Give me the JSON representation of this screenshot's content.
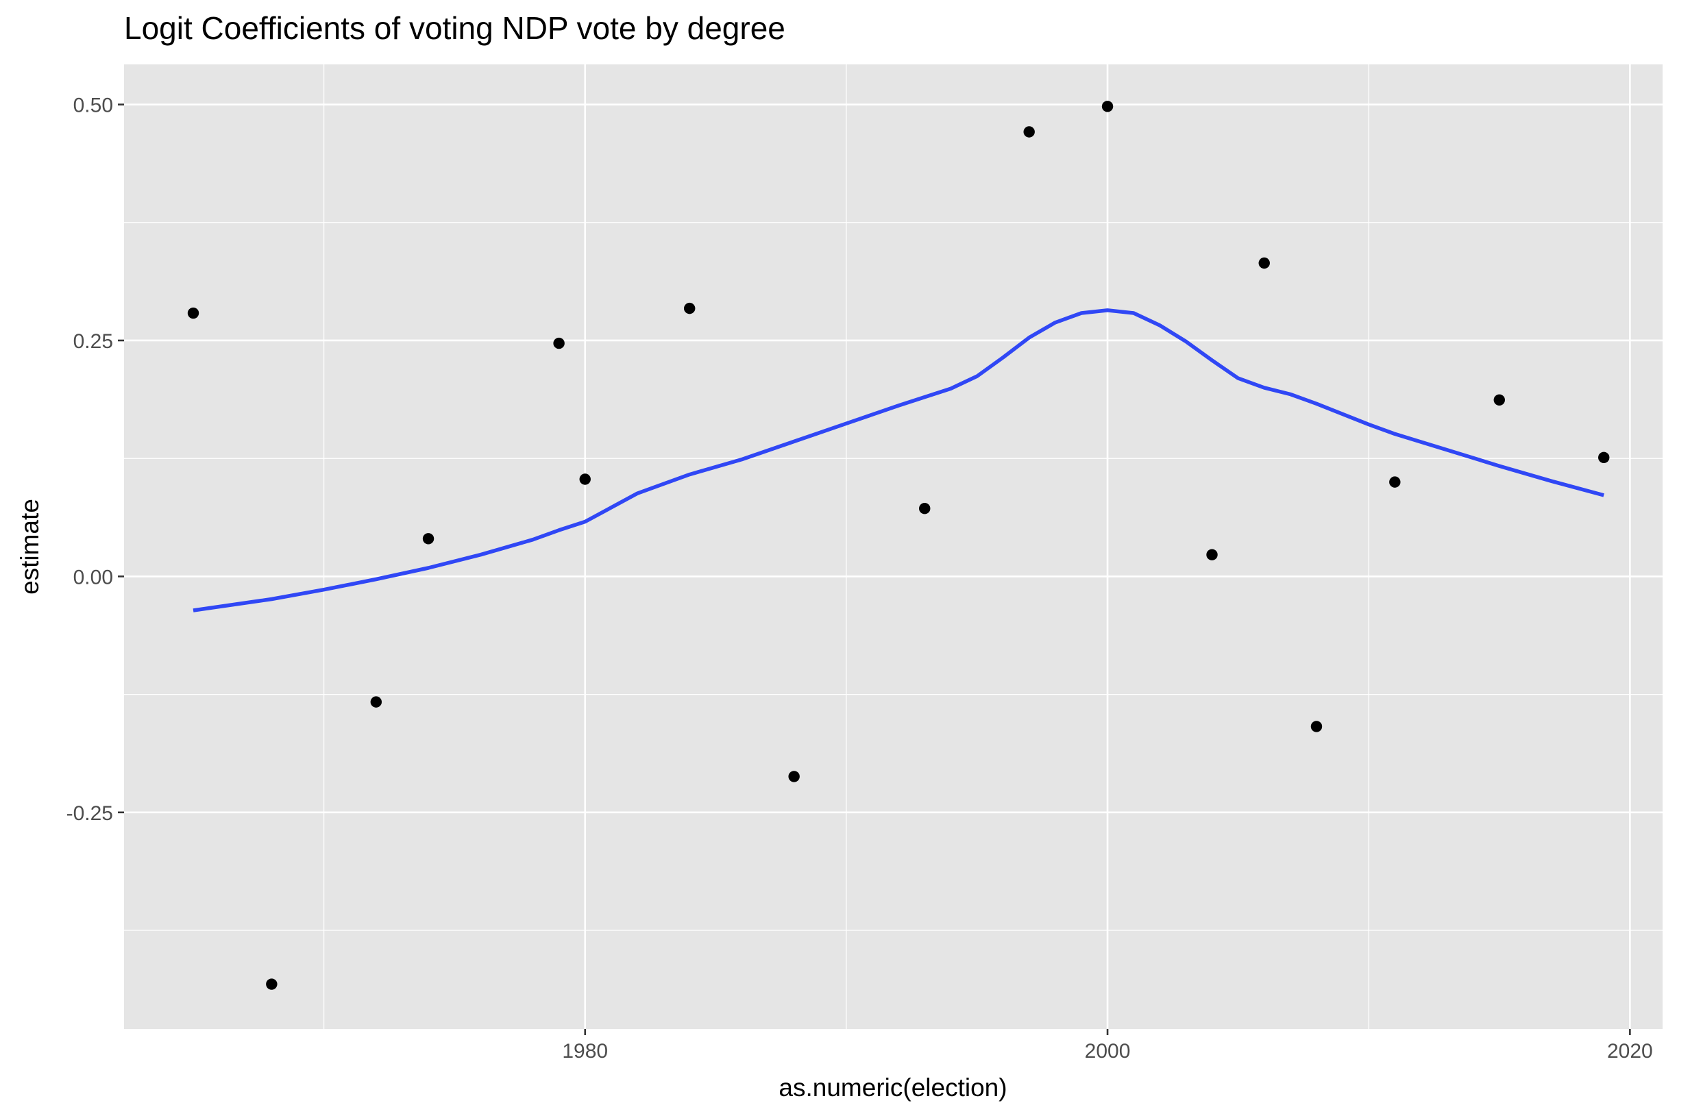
{
  "title": "Logit Coefficients of voting NDP vote by degree",
  "chart_data": {
    "type": "scatter",
    "title": "Logit Coefficients of voting NDP vote by degree",
    "xlabel": "as.numeric(election)",
    "ylabel": "estimate",
    "xlim": [
      1962.35,
      2021.25
    ],
    "ylim": [
      -0.4795,
      0.5425
    ],
    "x_ticks": [
      1980,
      2000,
      2020
    ],
    "x_tick_labels": [
      "1980",
      "2000",
      "2020"
    ],
    "x_minor_ticks": [
      1970,
      1990,
      2010
    ],
    "y_ticks": [
      -0.25,
      0.0,
      0.25,
      0.5
    ],
    "y_tick_labels": [
      "-0.25",
      "0.00",
      "0.25",
      "0.50"
    ],
    "y_minor_ticks": [
      -0.375,
      -0.125,
      0.125,
      0.375
    ],
    "grid": true,
    "legend": "none",
    "colors": {
      "panel": "#e5e5e5",
      "grid": "#ffffff",
      "points": "#000000",
      "smooth": "#3047f5"
    },
    "series": [
      {
        "type": "points",
        "x": [
          1965,
          1968,
          1972,
          1974,
          1979,
          1980,
          1984,
          1988,
          1993,
          1997,
          2000,
          2004,
          2006,
          2008,
          2011,
          2015,
          2019
        ],
        "y": [
          0.279,
          -0.432,
          -0.133,
          0.04,
          0.247,
          0.103,
          0.284,
          -0.212,
          0.072,
          0.471,
          0.498,
          0.023,
          0.332,
          -0.159,
          0.1,
          0.187,
          0.126
        ]
      },
      {
        "type": "smooth",
        "x": [
          1965,
          1968,
          1970,
          1972,
          1974,
          1976,
          1978,
          1979,
          1980,
          1982,
          1984,
          1986,
          1988,
          1990,
          1992,
          1993,
          1994,
          1995,
          1996,
          1997,
          1998,
          1999,
          2000,
          2001,
          2002,
          2003,
          2004,
          2005,
          2006,
          2007,
          2008,
          2009,
          2010,
          2011,
          2013,
          2015,
          2017,
          2019
        ],
        "y": [
          -0.036,
          -0.024,
          -0.014,
          -0.003,
          0.009,
          0.023,
          0.039,
          0.049,
          0.058,
          0.088,
          0.108,
          0.124,
          0.143,
          0.162,
          0.181,
          0.19,
          0.199,
          0.212,
          0.232,
          0.253,
          0.269,
          0.279,
          0.282,
          0.279,
          0.266,
          0.249,
          0.229,
          0.21,
          0.2,
          0.193,
          0.183,
          0.172,
          0.161,
          0.151,
          0.134,
          0.117,
          0.101,
          0.086
        ]
      }
    ]
  }
}
